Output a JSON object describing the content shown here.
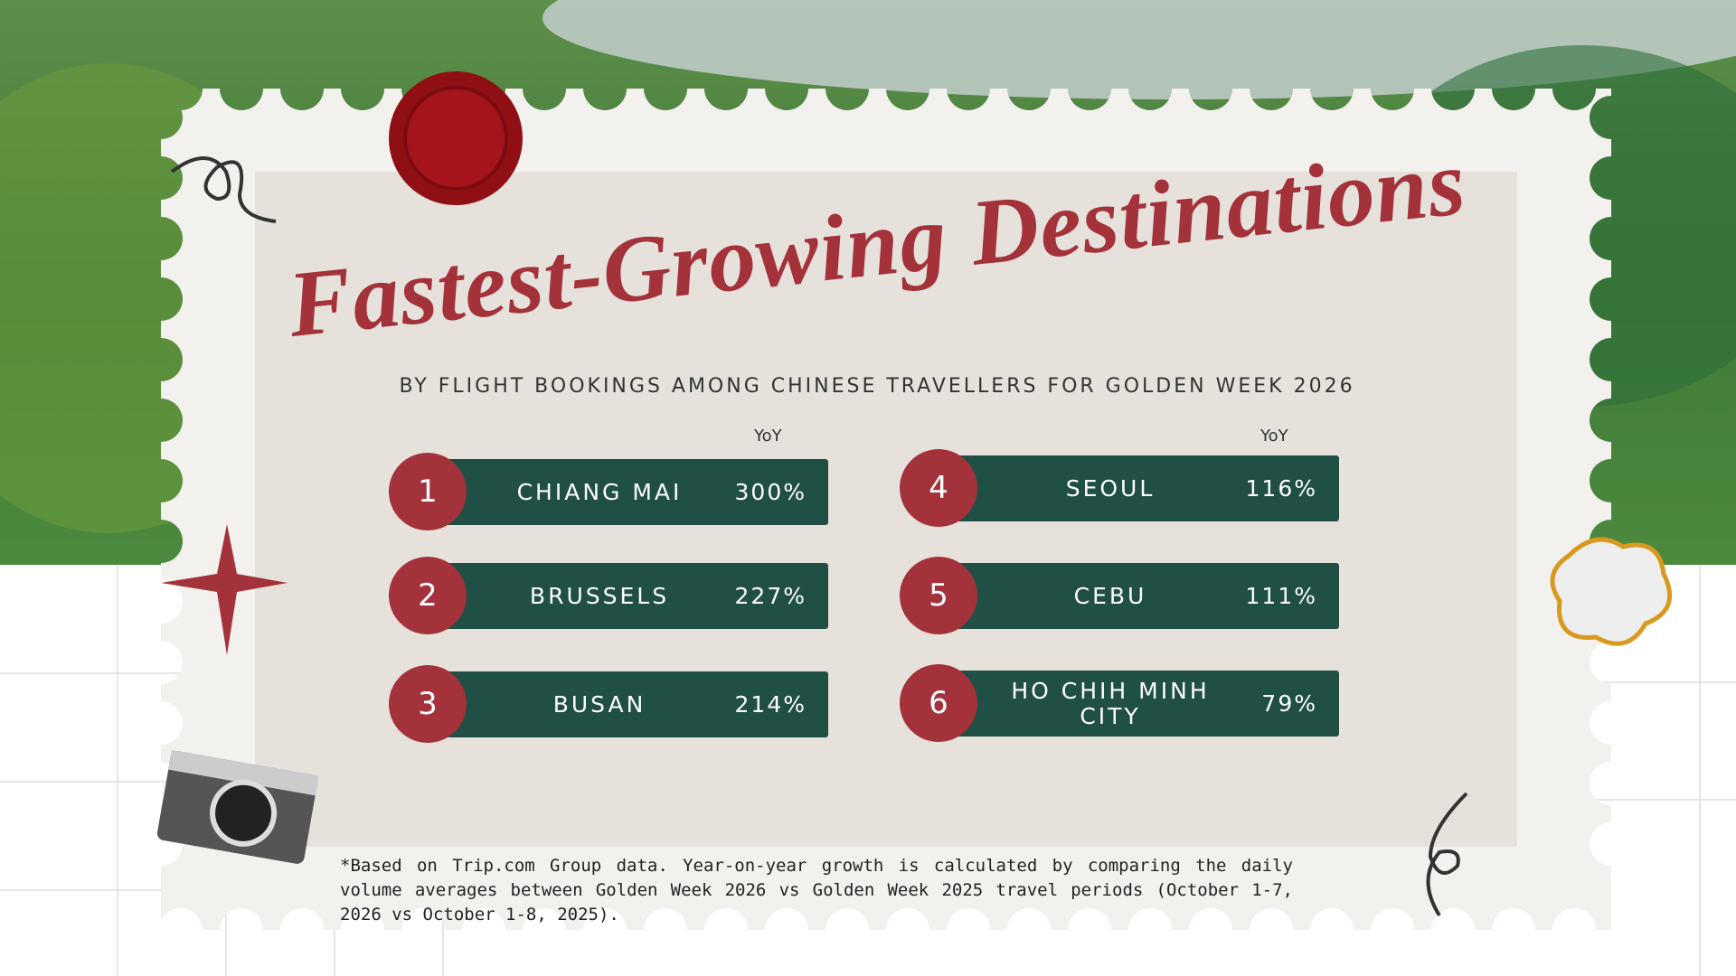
{
  "title": "Fastest-Growing Destinations",
  "subtitle": "BY FLIGHT BOOKINGS AMONG CHINESE TRAVELLERS FOR GOLDEN WEEK 2026",
  "columns": [
    {
      "header": "YoY"
    },
    {
      "header": "YoY"
    }
  ],
  "items": [
    {
      "rank": "1",
      "city": "CHIANG MAI",
      "yoy": "300%"
    },
    {
      "rank": "2",
      "city": "BRUSSELS",
      "yoy": "227%"
    },
    {
      "rank": "3",
      "city": "BUSAN",
      "yoy": "214%"
    },
    {
      "rank": "4",
      "city": "SEOUL",
      "yoy": "116%"
    },
    {
      "rank": "5",
      "city": "CEBU",
      "yoy": "111%"
    },
    {
      "rank": "6",
      "city": "HO CHIH MINH CITY",
      "yoy": "79%"
    }
  ],
  "footnote": "*Based on Trip.com Group data. Year-on-year growth is calculated by comparing the daily volume averages between Golden Week 2026 vs Golden Week 2025 travel periods (October 1-7, 2026 vs October 1-8, 2025)."
}
